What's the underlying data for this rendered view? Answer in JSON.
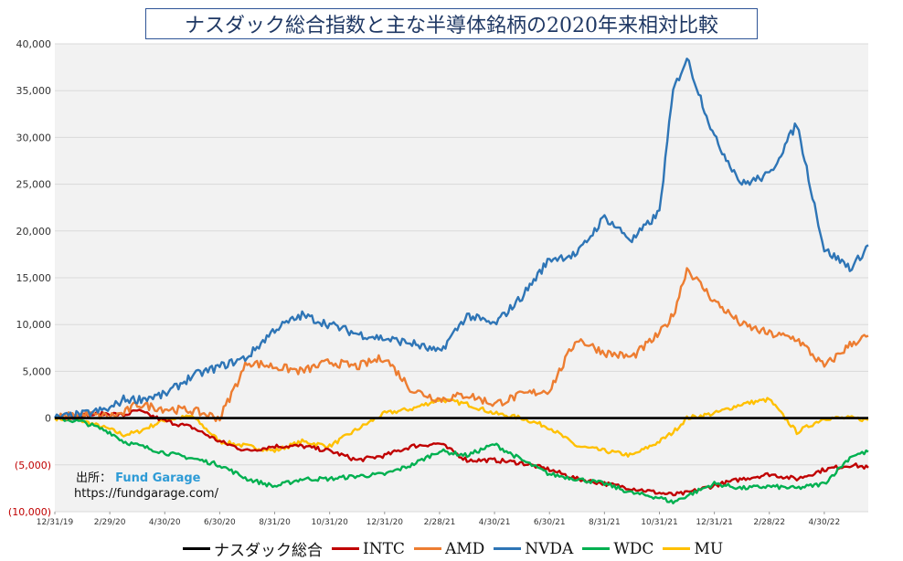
{
  "chart_data": {
    "type": "line",
    "title": "ナスダック総合指数と主な半導体銘柄の2020年来相対比較",
    "xlabel": "",
    "ylabel": "",
    "ylim": [
      -10000,
      40000
    ],
    "y_ticks": [
      {
        "value": 40000,
        "label": "40,000"
      },
      {
        "value": 35000,
        "label": "35,000"
      },
      {
        "value": 30000,
        "label": "30,000"
      },
      {
        "value": 25000,
        "label": "25,000"
      },
      {
        "value": 20000,
        "label": "20,000"
      },
      {
        "value": 15000,
        "label": "15,000"
      },
      {
        "value": 10000,
        "label": "10,000"
      },
      {
        "value": 5000,
        "label": "5,000"
      },
      {
        "value": 0,
        "label": "0"
      },
      {
        "value": -5000,
        "label": "(5,000)"
      },
      {
        "value": -10000,
        "label": "(10,000)"
      }
    ],
    "x_ticks": [
      "12/31/19",
      "2/29/20",
      "4/30/20",
      "6/30/20",
      "8/31/20",
      "10/31/20",
      "12/31/20",
      "2/28/21",
      "4/30/21",
      "6/30/21",
      "8/31/21",
      "10/31/21",
      "12/31/21",
      "2/28/22",
      "4/30/22"
    ],
    "x_tick_index": [
      0,
      2,
      4,
      6,
      8,
      10,
      12,
      14,
      16,
      18,
      20,
      22,
      24,
      26,
      28
    ],
    "x_max_index": 29.6,
    "x": [
      0,
      1,
      2,
      2.5,
      3,
      4,
      5,
      6,
      7,
      8,
      9,
      10,
      11,
      12,
      13,
      14,
      15,
      16,
      17,
      18,
      19,
      20,
      21,
      22,
      22.5,
      23,
      24,
      25,
      26,
      27,
      28,
      29,
      29.6
    ],
    "series": [
      {
        "name": "ナスダック総合",
        "color": "#000000",
        "width": 2.6,
        "values": [
          0,
          0,
          0,
          0,
          0,
          0,
          0,
          0,
          0,
          0,
          0,
          0,
          0,
          0,
          0,
          0,
          0,
          0,
          0,
          0,
          0,
          0,
          0,
          0,
          0,
          0,
          0,
          0,
          0,
          0,
          0,
          0,
          0
        ]
      },
      {
        "name": "MU",
        "color": "#ffc000",
        "width": 2.4,
        "values": [
          0,
          -300,
          -1200,
          -1800,
          -1500,
          -200,
          200,
          -2500,
          -3000,
          -3500,
          -2500,
          -3000,
          -1200,
          500,
          1000,
          2000,
          1500,
          500,
          0,
          -1000,
          -3000,
          -3500,
          -4000,
          -2500,
          -1500,
          0,
          500,
          1500,
          2000,
          -1500,
          0,
          0,
          -200
        ]
      },
      {
        "name": "INTC",
        "color": "#c00000",
        "width": 2.4,
        "values": [
          0,
          300,
          500,
          300,
          800,
          -300,
          -1000,
          -2500,
          -3500,
          -3000,
          -3000,
          -3500,
          -4500,
          -4000,
          -3000,
          -2700,
          -4500,
          -4500,
          -4800,
          -5500,
          -6500,
          -7000,
          -7500,
          -8000,
          -8200,
          -8000,
          -7200,
          -6500,
          -6000,
          -6500,
          -5500,
          -5000,
          -5300
        ]
      },
      {
        "name": "WDC",
        "color": "#00b050",
        "width": 2.4,
        "values": [
          0,
          -400,
          -1500,
          -2500,
          -2900,
          -3700,
          -4300,
          -5000,
          -6500,
          -7300,
          -6500,
          -6500,
          -6200,
          -6000,
          -5000,
          -3500,
          -4000,
          -2800,
          -4500,
          -6000,
          -6500,
          -7000,
          -8000,
          -8500,
          -9000,
          -8300,
          -7000,
          -7500,
          -7300,
          -7500,
          -7000,
          -4000,
          -3600
        ]
      },
      {
        "name": "AMD",
        "color": "#ed7d31",
        "width": 2.4,
        "values": [
          0,
          400,
          200,
          500,
          1500,
          1000,
          800,
          0,
          6000,
          5500,
          5000,
          6000,
          5500,
          6500,
          3000,
          2000,
          2500,
          1500,
          2500,
          3000,
          8500,
          7000,
          6500,
          9000,
          11000,
          16000,
          12500,
          10000,
          9000,
          8500,
          5500,
          8000,
          8800
        ]
      },
      {
        "name": "NVDA",
        "color": "#2e75b6",
        "width": 2.4,
        "values": [
          0,
          400,
          1000,
          2000,
          2000,
          2500,
          4500,
          5500,
          6500,
          9500,
          11000,
          10000,
          9000,
          8500,
          8000,
          7000,
          11000,
          10000,
          13000,
          17000,
          17500,
          21500,
          19000,
          22000,
          35000,
          38500,
          30000,
          25000,
          26000,
          31500,
          18000,
          16000,
          18500
        ]
      }
    ]
  },
  "legend": [
    {
      "label": "ナスダック総合",
      "color": "#000000"
    },
    {
      "label": "INTC",
      "color": "#c00000"
    },
    {
      "label": "AMD",
      "color": "#ed7d31"
    },
    {
      "label": "NVDA",
      "color": "#2e75b6"
    },
    {
      "label": "WDC",
      "color": "#00b050"
    },
    {
      "label": "MU",
      "color": "#ffc000"
    }
  ],
  "source": {
    "label": "出所：",
    "name": "Fund Garage",
    "url": "https://fundgarage.com/"
  }
}
